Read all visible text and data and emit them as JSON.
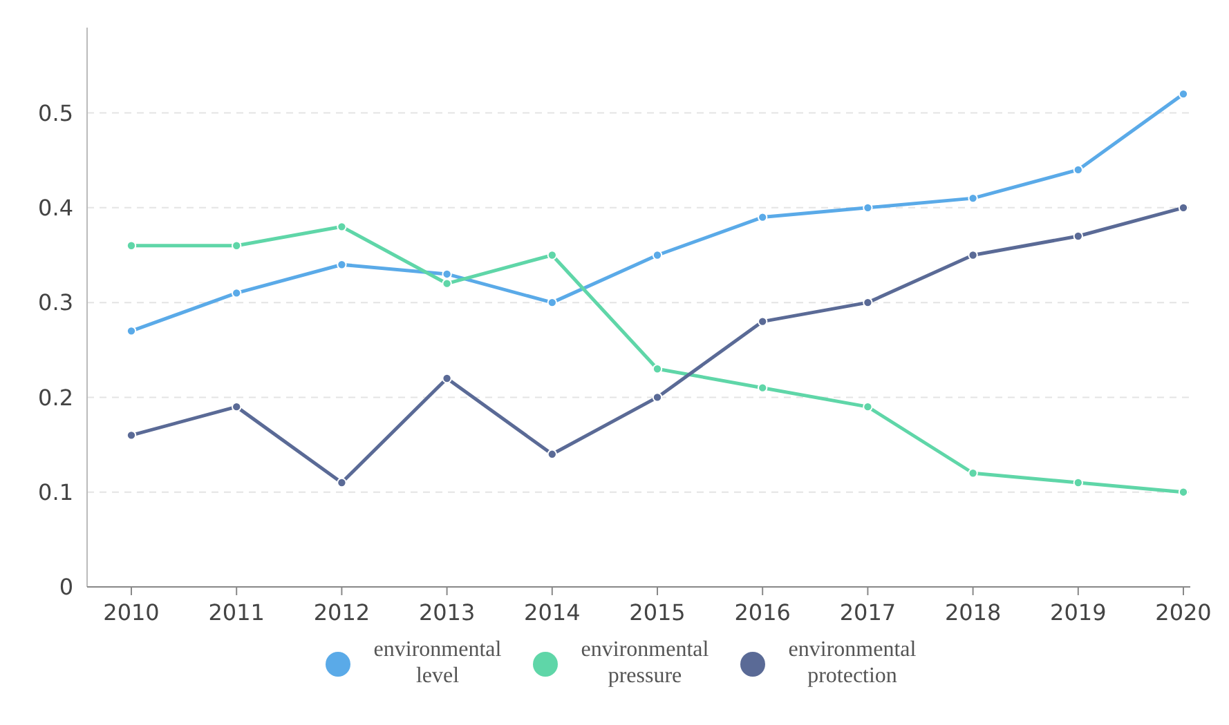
{
  "chart_data": {
    "type": "line",
    "categories": [
      "2010",
      "2011",
      "2012",
      "2013",
      "2014",
      "2015",
      "2016",
      "2017",
      "2018",
      "2019",
      "2020"
    ],
    "series": [
      {
        "name": "environmental level",
        "color": "#5aaae8",
        "values": [
          0.27,
          0.31,
          0.34,
          0.33,
          0.3,
          0.35,
          0.39,
          0.4,
          0.41,
          0.44,
          0.52
        ]
      },
      {
        "name": "environmental pressure",
        "color": "#5fd6a8",
        "values": [
          0.36,
          0.36,
          0.38,
          0.32,
          0.35,
          0.23,
          0.21,
          0.19,
          0.12,
          0.11,
          0.1
        ]
      },
      {
        "name": "environmental protection",
        "color": "#5a6a96",
        "values": [
          0.16,
          0.19,
          0.11,
          0.22,
          0.14,
          0.2,
          0.28,
          0.3,
          0.35,
          0.37,
          0.4
        ]
      }
    ],
    "ylim": [
      0,
      0.59
    ],
    "yticks": [
      0,
      0.1,
      0.2,
      0.3,
      0.4,
      0.5
    ],
    "grid": "y",
    "legend": "bottom",
    "marker": "circle",
    "line_style": "solid"
  }
}
